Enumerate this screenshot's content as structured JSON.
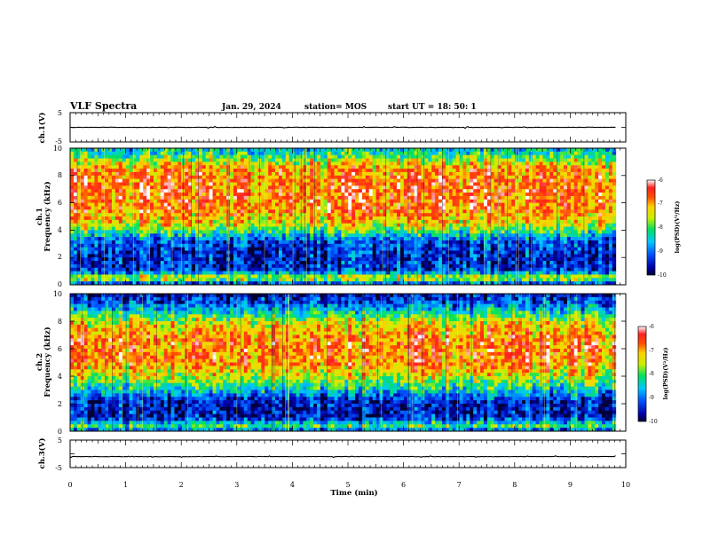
{
  "chart_data": {
    "type": "heatmap",
    "title": "VLF Spectra",
    "header": {
      "date": "Jan. 29, 2024",
      "station": "station= MOS",
      "start_ut": "start UT = 18: 50: 1"
    },
    "xlabel": "Time (min)",
    "xlim": [
      0,
      10
    ],
    "xticks": [
      "0",
      "1",
      "2",
      "3",
      "4",
      "5",
      "6",
      "7",
      "8",
      "9",
      "10"
    ],
    "panels": [
      {
        "id": "ch1-voltage",
        "type": "line",
        "ylabel": "ch.1(V)",
        "ylim": [
          -5,
          5
        ],
        "yticks": [
          "5",
          "-5"
        ],
        "level": 0
      },
      {
        "id": "ch1-spectrogram",
        "type": "heatmap",
        "ylabel_top": "ch.1",
        "ylabel": "Frequency (kHz)",
        "ylim": [
          0,
          10
        ],
        "yticks": [
          "0",
          "2",
          "4",
          "6",
          "8",
          "10"
        ],
        "data_end_min": 9.82,
        "colorbar": {
          "label": "log(PSD)(V²/Hz)",
          "range": [
            -10,
            -6
          ],
          "ticks": [
            "-6",
            "-7",
            "-8",
            "-9",
            "-10"
          ]
        },
        "intensity_profile": [
          {
            "f": 0.0,
            "v": -9.6
          },
          {
            "f": 0.5,
            "v": -7.2
          },
          {
            "f": 1.0,
            "v": -9.3
          },
          {
            "f": 2.0,
            "v": -9.5
          },
          {
            "f": 3.2,
            "v": -9.2
          },
          {
            "f": 3.8,
            "v": -8.2
          },
          {
            "f": 4.5,
            "v": -7.3
          },
          {
            "f": 5.5,
            "v": -6.8
          },
          {
            "f": 7.0,
            "v": -6.7
          },
          {
            "f": 8.5,
            "v": -6.9
          },
          {
            "f": 9.2,
            "v": -7.8
          },
          {
            "f": 10.0,
            "v": -8.6
          }
        ]
      },
      {
        "id": "ch2-spectrogram",
        "type": "heatmap",
        "ylabel_top": "ch.2",
        "ylabel": "Frequency (kHz)",
        "ylim": [
          0,
          10
        ],
        "yticks": [
          "0",
          "2",
          "4",
          "6",
          "8",
          "10"
        ],
        "data_end_min": 9.82,
        "colorbar": {
          "label": "log(PSD)(V²/Hz)",
          "range": [
            -10,
            -6
          ],
          "ticks": [
            "-6",
            "-7",
            "-8",
            "-9",
            "-10"
          ]
        },
        "intensity_profile": [
          {
            "f": 0.0,
            "v": -9.2
          },
          {
            "f": 0.4,
            "v": -8.0
          },
          {
            "f": 1.0,
            "v": -9.6
          },
          {
            "f": 2.2,
            "v": -9.5
          },
          {
            "f": 3.0,
            "v": -8.5
          },
          {
            "f": 4.0,
            "v": -7.5
          },
          {
            "f": 5.0,
            "v": -6.9
          },
          {
            "f": 6.5,
            "v": -6.8
          },
          {
            "f": 7.8,
            "v": -7.3
          },
          {
            "f": 8.5,
            "v": -8.2
          },
          {
            "f": 9.3,
            "v": -9.2
          },
          {
            "f": 10.0,
            "v": -9.6
          }
        ]
      },
      {
        "id": "ch3-voltage",
        "type": "line",
        "ylabel": "ch.3(V)",
        "ylim": [
          -5,
          5
        ],
        "yticks": [
          "5",
          "-5"
        ],
        "level": -1
      }
    ]
  }
}
